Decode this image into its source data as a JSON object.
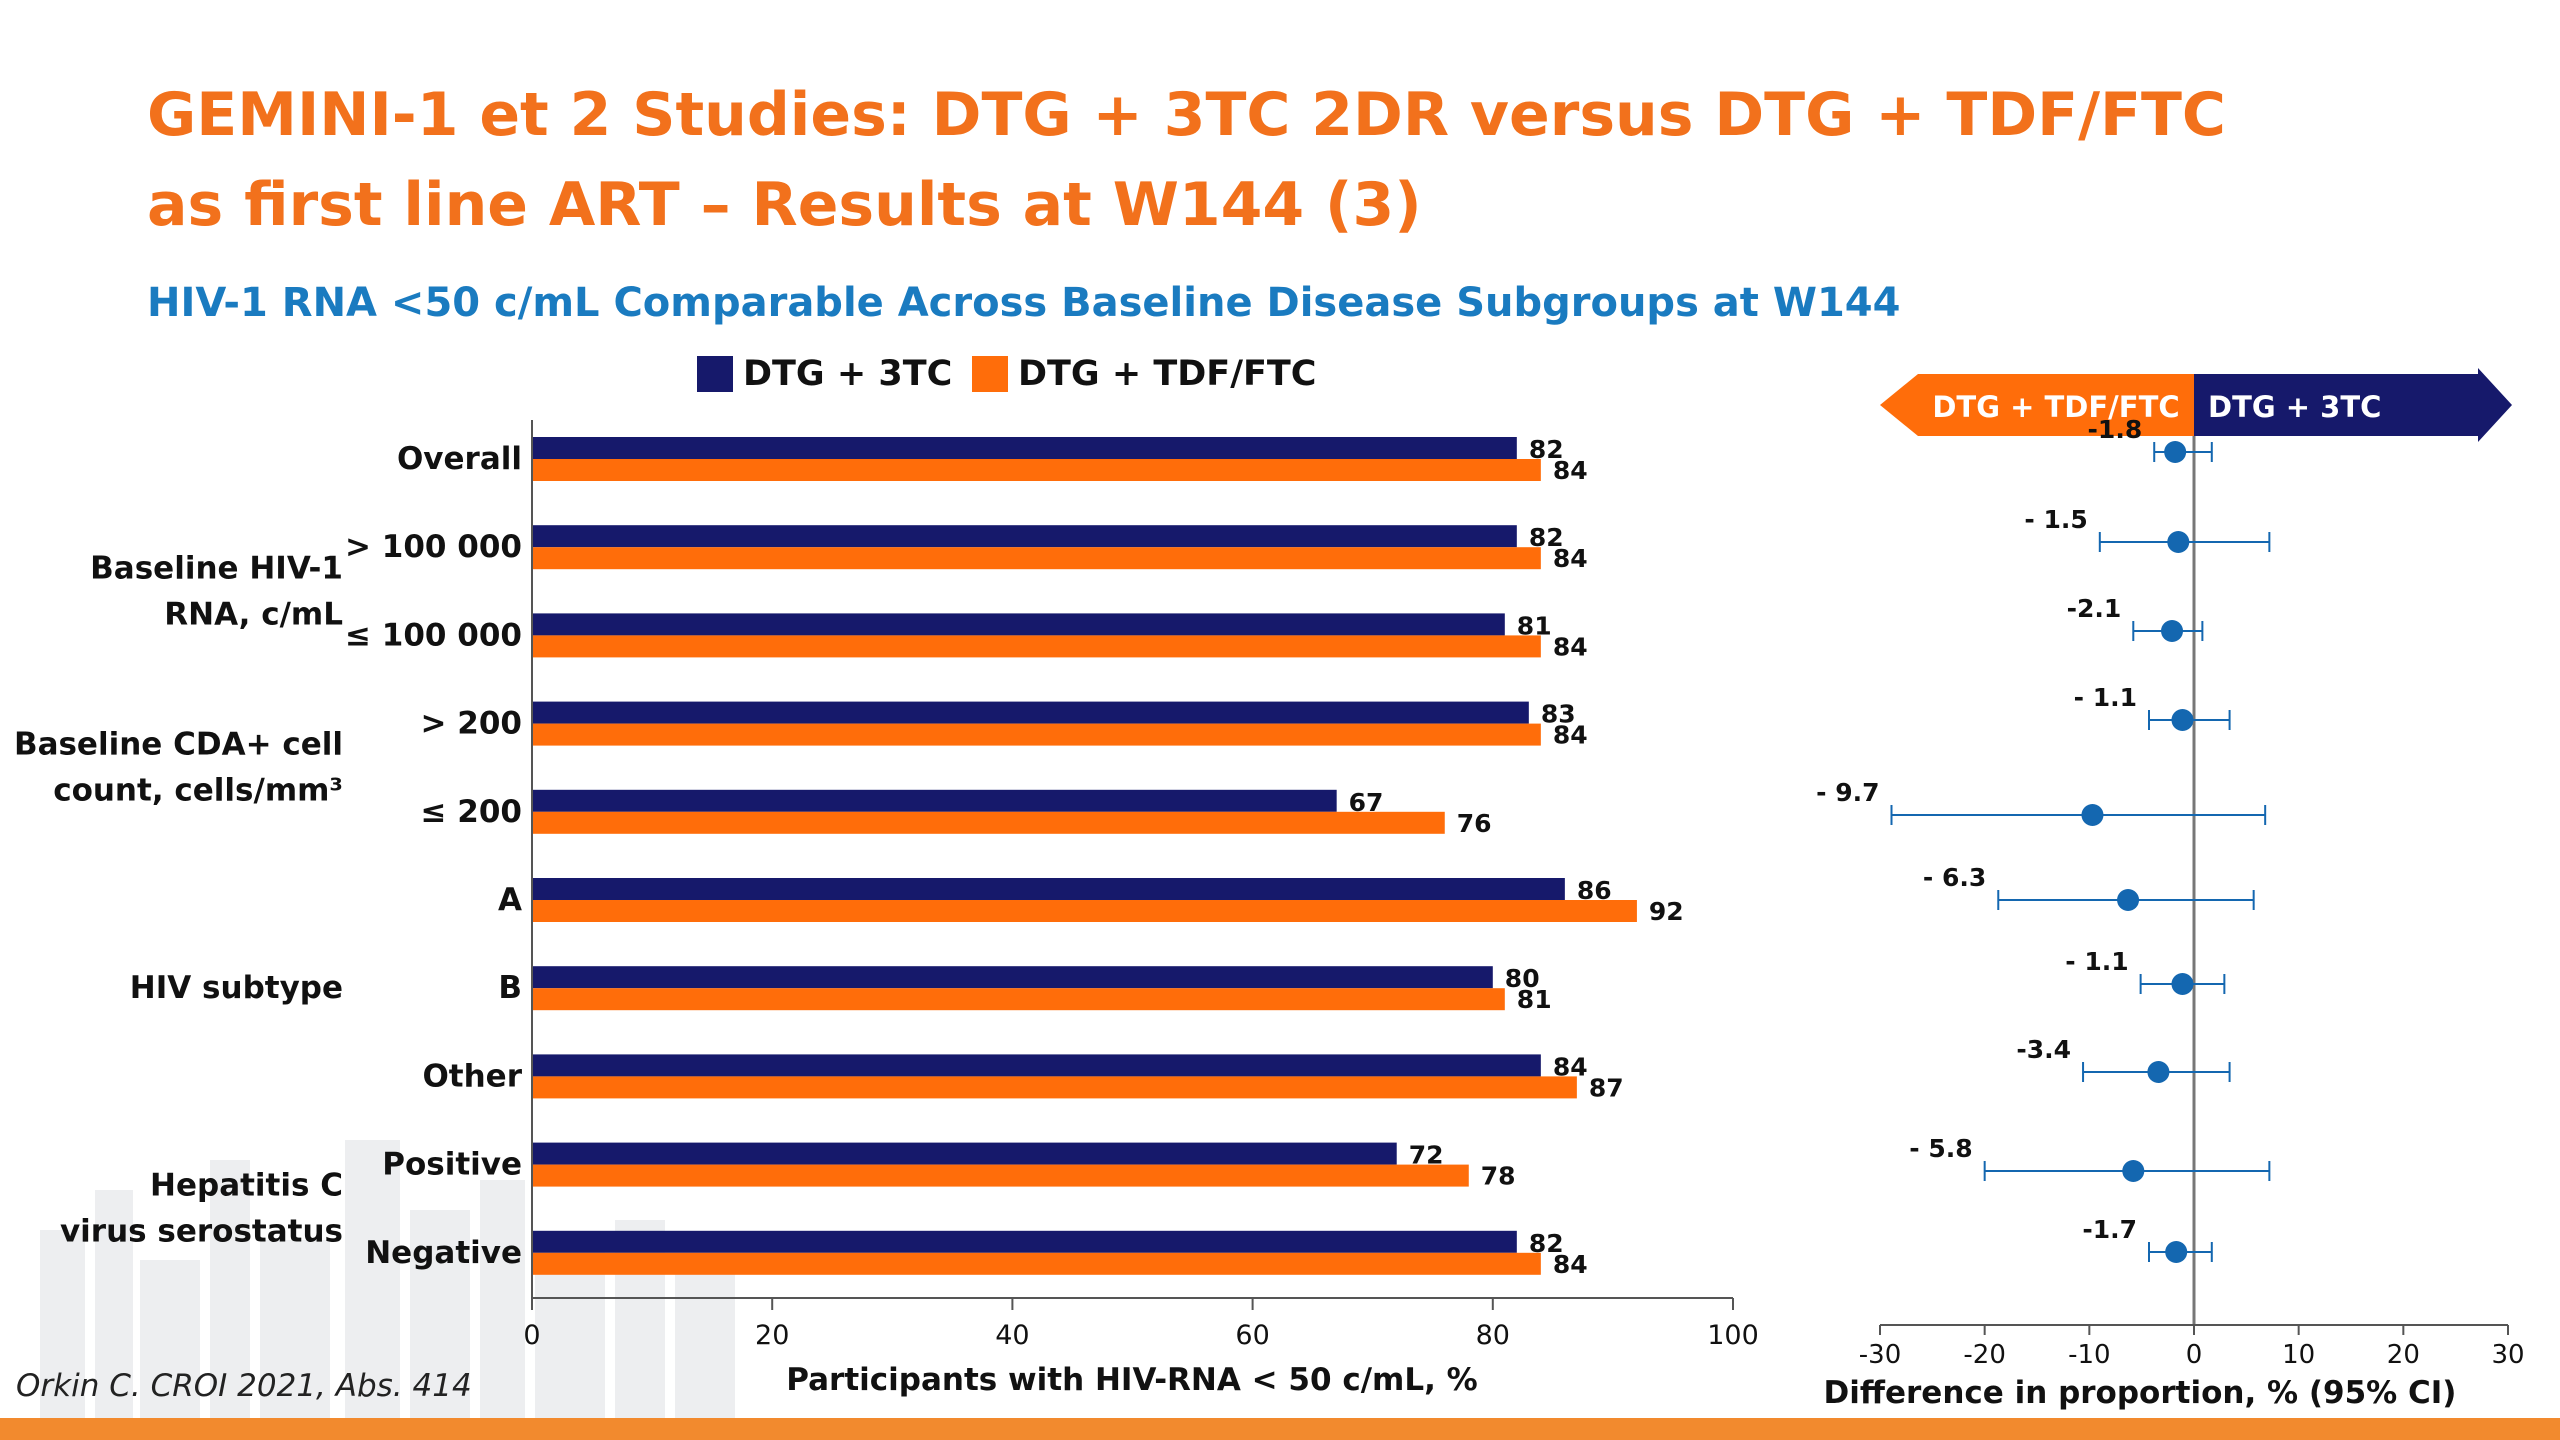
{
  "title_line1": "GEMINI-1 et 2 Studies: DTG + 3TC 2DR versus DTG + TDF/FTC",
  "title_line2": "as first line ART – Results at W144 (3)",
  "subtitle": "HIV-1 RNA <50 c/mL Comparable Across Baseline Disease Subgroups at W144",
  "citation": "Orkin C. CROI 2021, Abs. 414",
  "colors": {
    "navy": "#16196B",
    "orange": "#FF6D0A",
    "title_orange": "#F2711C",
    "subtitle_blue": "#1A7BC0",
    "forest_blue": "#1467B0"
  },
  "legend": [
    {
      "label": "DTG + 3TC",
      "color": "#16196B"
    },
    {
      "label": "DTG + TDF/FTC",
      "color": "#FF6D0A"
    }
  ],
  "chart_data": [
    {
      "type": "bar",
      "orientation": "horizontal",
      "categories": [
        "Overall",
        "> 100 000",
        "≤ 100 000",
        "> 200",
        "≤ 200",
        "A",
        "B",
        "Other",
        "Positive",
        "Negative"
      ],
      "groups": [
        {
          "label": "Baseline HIV-1 RNA, c/mL",
          "lines": [
            "Baseline HIV-1",
            "RNA, c/mL"
          ],
          "categories": [
            1,
            2
          ]
        },
        {
          "label": "Baseline CDA+ cell count, cells/mm³",
          "lines": [
            "Baseline CDA+ cell",
            "count, cells/mm³"
          ],
          "categories": [
            3,
            4
          ]
        },
        {
          "label": "HIV subtype",
          "lines": [
            "HIV subtype"
          ],
          "categories": [
            5,
            6,
            7
          ]
        },
        {
          "label": "Hepatitis C virus serostatus",
          "lines": [
            "Hepatitis C",
            "virus serostatus"
          ],
          "categories": [
            8,
            9
          ]
        }
      ],
      "series": [
        {
          "name": "DTG + 3TC",
          "values": [
            82,
            82,
            81,
            83,
            67,
            86,
            80,
            84,
            72,
            82
          ]
        },
        {
          "name": "DTG + TDF/FTC",
          "values": [
            84,
            84,
            84,
            84,
            76,
            92,
            81,
            87,
            78,
            84
          ]
        }
      ],
      "xlabel": "Participants with HIV-RNA < 50 c/mL, %",
      "xlim": [
        0,
        100
      ],
      "xticks": [
        0,
        20,
        40,
        60,
        80,
        100
      ],
      "legend_position": "top",
      "grid": false
    },
    {
      "type": "scatter",
      "subtype": "forest",
      "categories": [
        "Overall",
        "> 100 000",
        "≤ 100 000",
        "> 200",
        "≤ 200",
        "A",
        "B",
        "Other",
        "Positive",
        "Negative"
      ],
      "points": [
        {
          "label": "-1.8",
          "value": -1.8,
          "ci": [
            -3.8,
            1.7
          ]
        },
        {
          "label": "- 1.5",
          "value": -1.5,
          "ci": [
            -9.0,
            7.2
          ]
        },
        {
          "label": "-2.1",
          "value": -2.1,
          "ci": [
            -5.8,
            0.8
          ]
        },
        {
          "label": "- 1.1",
          "value": -1.1,
          "ci": [
            -4.3,
            3.4
          ]
        },
        {
          "label": "- 9.7",
          "value": -9.7,
          "ci": [
            -28.9,
            6.8
          ]
        },
        {
          "label": "- 6.3",
          "value": -6.3,
          "ci": [
            -18.7,
            5.7
          ]
        },
        {
          "label": "- 1.1",
          "value": -1.1,
          "ci": [
            -5.1,
            2.9
          ]
        },
        {
          "label": "-3.4",
          "value": -3.4,
          "ci": [
            -10.6,
            3.4
          ]
        },
        {
          "label": "- 5.8",
          "value": -5.8,
          "ci": [
            -20.0,
            7.2
          ]
        },
        {
          "label": "-1.7",
          "value": -1.7,
          "ci": [
            -4.3,
            1.7
          ]
        }
      ],
      "xlabel": "Difference in proportion, % (95% CI)",
      "xlim": [
        -30,
        30
      ],
      "xticks": [
        -30,
        -20,
        -10,
        0,
        10,
        20,
        30
      ],
      "arrows": {
        "left": {
          "label": "DTG + TDF/FTC",
          "color": "#FF6D0A"
        },
        "right": {
          "label": "DTG + 3TC",
          "color": "#16196B"
        }
      },
      "grid": false
    }
  ]
}
